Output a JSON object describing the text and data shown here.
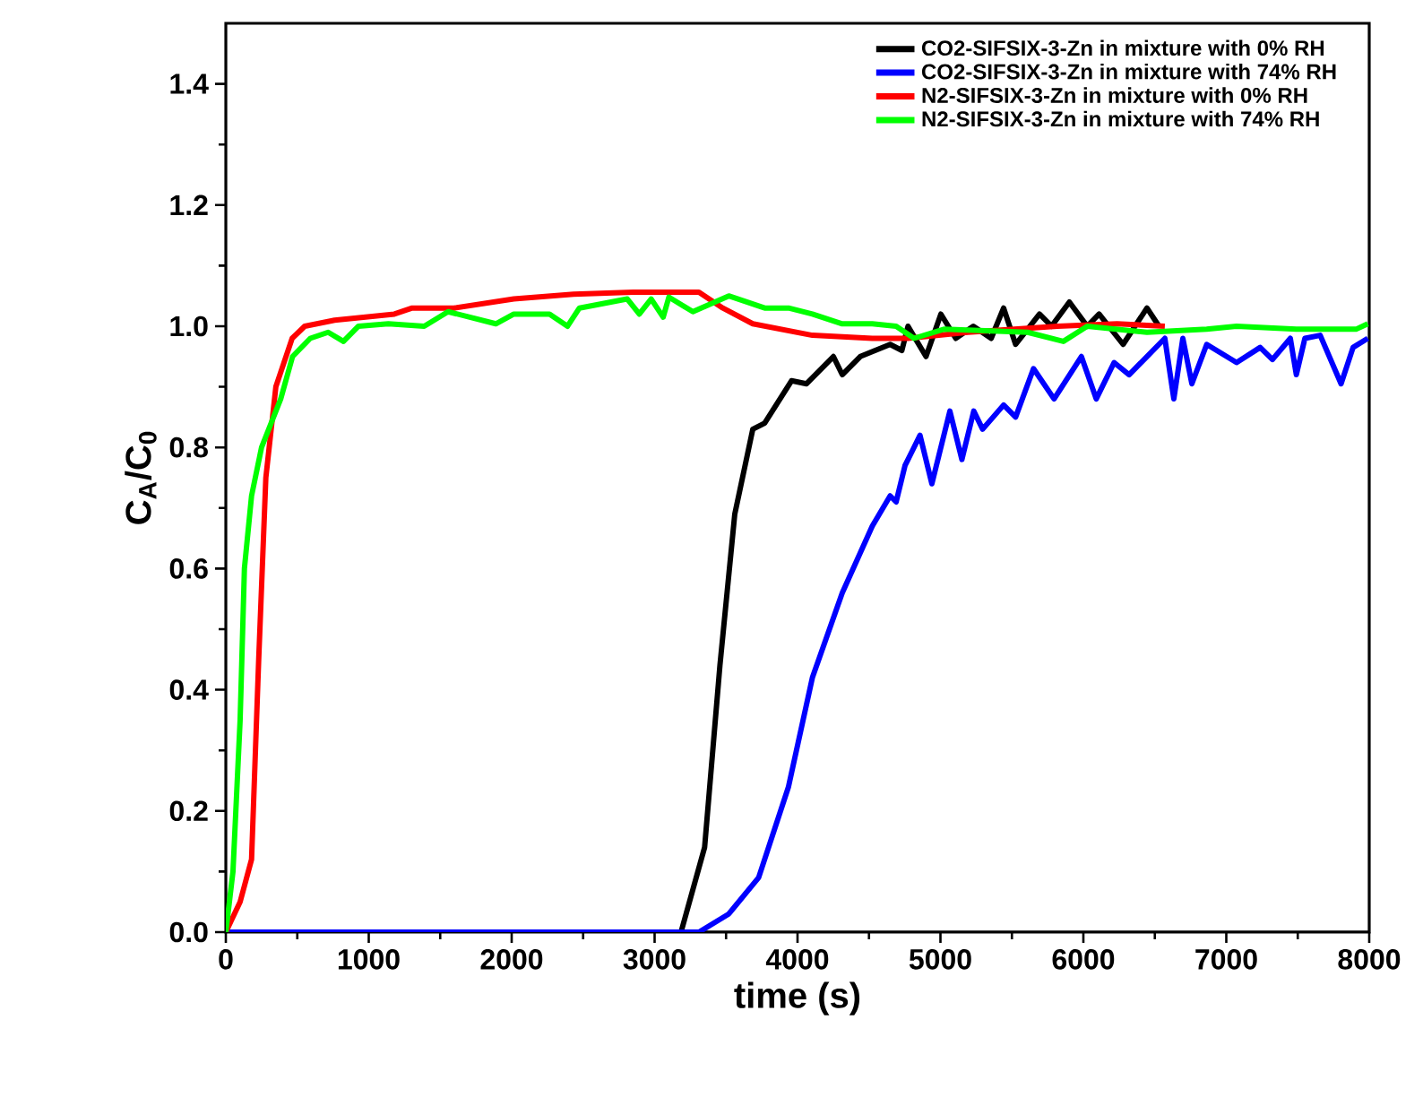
{
  "chart_data": {
    "type": "line",
    "xlabel": "time (s)",
    "ylabel": "C$_{A}$/C$_{0}$",
    "xlim": [
      0,
      8000
    ],
    "ylim": [
      0,
      1.5
    ],
    "xticks": [
      0,
      1000,
      2000,
      3000,
      4000,
      5000,
      6000,
      7000,
      8000
    ],
    "yticks": [
      {
        "value": 0,
        "label": "0.0"
      },
      {
        "value": 0.2,
        "label": "0.2"
      },
      {
        "value": 0.4,
        "label": "0.4"
      },
      {
        "value": 0.6,
        "label": "0.6"
      },
      {
        "value": 0.8,
        "label": "0.8"
      },
      {
        "value": 1.0,
        "label": "1.0"
      },
      {
        "value": 1.2,
        "label": "1.2"
      },
      {
        "value": 1.4,
        "label": "1.4"
      }
    ],
    "grid": false,
    "legend": "top right",
    "marker": "none",
    "line_style": "solid",
    "series": [
      {
        "name": "CO2-SIFSIX-3-Zn in mixture with 0% RH",
        "color": "#000000",
        "x": [
          0,
          1000,
          2000,
          3000,
          3185,
          3350,
          3457,
          3561,
          3687,
          3770,
          3958,
          4063,
          4251,
          4313,
          4439,
          4648,
          4730,
          4773,
          4899,
          5003,
          5107,
          5230,
          5355,
          5442,
          5526,
          5693,
          5777,
          5902,
          6027,
          6110,
          6278,
          6445,
          6529
        ],
        "values": [
          0,
          0,
          0,
          0,
          0,
          0.14,
          0.44,
          0.69,
          0.83,
          0.84,
          0.91,
          0.905,
          0.95,
          0.92,
          0.95,
          0.97,
          0.96,
          1.0,
          0.95,
          1.02,
          0.98,
          1.0,
          0.98,
          1.03,
          0.97,
          1.02,
          1.0,
          1.04,
          1.0,
          1.02,
          0.97,
          1.03,
          1.0
        ]
      },
      {
        "name": "CO2-SIFSIX-3-Zn in mixture with 74% RH",
        "color": "#0000ff",
        "x": [
          0,
          1000,
          2000,
          3000,
          3310,
          3519,
          3728,
          3937,
          4104,
          4313,
          4523,
          4648,
          4690,
          4752,
          4857,
          4940,
          5066,
          5150,
          5233,
          5295,
          5442,
          5526,
          5651,
          5795,
          5986,
          6090,
          6215,
          6320,
          6445,
          6570,
          6633,
          6696,
          6759,
          6863,
          7072,
          7237,
          7323,
          7448,
          7490,
          7550,
          7657,
          7803,
          7887,
          7990
        ],
        "values": [
          0,
          0,
          0,
          0,
          0,
          0.03,
          0.09,
          0.24,
          0.42,
          0.56,
          0.67,
          0.72,
          0.71,
          0.77,
          0.82,
          0.74,
          0.86,
          0.78,
          0.86,
          0.83,
          0.87,
          0.85,
          0.93,
          0.88,
          0.95,
          0.88,
          0.94,
          0.92,
          0.95,
          0.98,
          0.88,
          0.98,
          0.905,
          0.97,
          0.94,
          0.965,
          0.945,
          0.98,
          0.92,
          0.98,
          0.985,
          0.905,
          0.965,
          0.98
        ]
      },
      {
        "name": "N2-SIFSIX-3-Zn in mixture with 0% RH",
        "color": "#ff0000",
        "x": [
          0,
          100,
          180,
          230,
          280,
          350,
          464,
          552,
          761,
          1179,
          1304,
          1596,
          2015,
          2433,
          2850,
          3310,
          3477,
          3687,
          4104,
          4523,
          4773,
          5191,
          5818,
          6236,
          6570
        ],
        "values": [
          0,
          0.05,
          0.12,
          0.45,
          0.75,
          0.9,
          0.98,
          1.0,
          1.01,
          1.02,
          1.03,
          1.03,
          1.045,
          1.053,
          1.056,
          1.056,
          1.03,
          1.004,
          0.985,
          0.98,
          0.98,
          0.99,
          1.0,
          1.004,
          1.0
        ]
      },
      {
        "name": "N2-SIFSIX-3-Zn in mixture with 74% RH",
        "color": "#00ff00",
        "x": [
          0,
          50,
          100,
          130,
          180,
          250,
          384,
          467,
          591,
          716,
          823,
          928,
          1137,
          1388,
          1555,
          1889,
          2015,
          2265,
          2391,
          2474,
          2809,
          2893,
          2976,
          3060,
          3100,
          3268,
          3519,
          3770,
          3937,
          4104,
          4313,
          4523,
          4690,
          4815,
          5024,
          5610,
          5860,
          6027,
          6445,
          6863,
          7072,
          7490,
          7908,
          7990
        ],
        "values": [
          0,
          0.1,
          0.35,
          0.6,
          0.72,
          0.8,
          0.88,
          0.95,
          0.98,
          0.99,
          0.975,
          1.0,
          1.004,
          1.0,
          1.024,
          1.004,
          1.02,
          1.02,
          1.0,
          1.03,
          1.045,
          1.02,
          1.045,
          1.015,
          1.048,
          1.024,
          1.05,
          1.03,
          1.03,
          1.02,
          1.004,
          1.004,
          1.0,
          0.98,
          0.995,
          0.99,
          0.975,
          1.0,
          0.99,
          0.995,
          1.0,
          0.995,
          0.995,
          1.004
        ]
      }
    ]
  }
}
